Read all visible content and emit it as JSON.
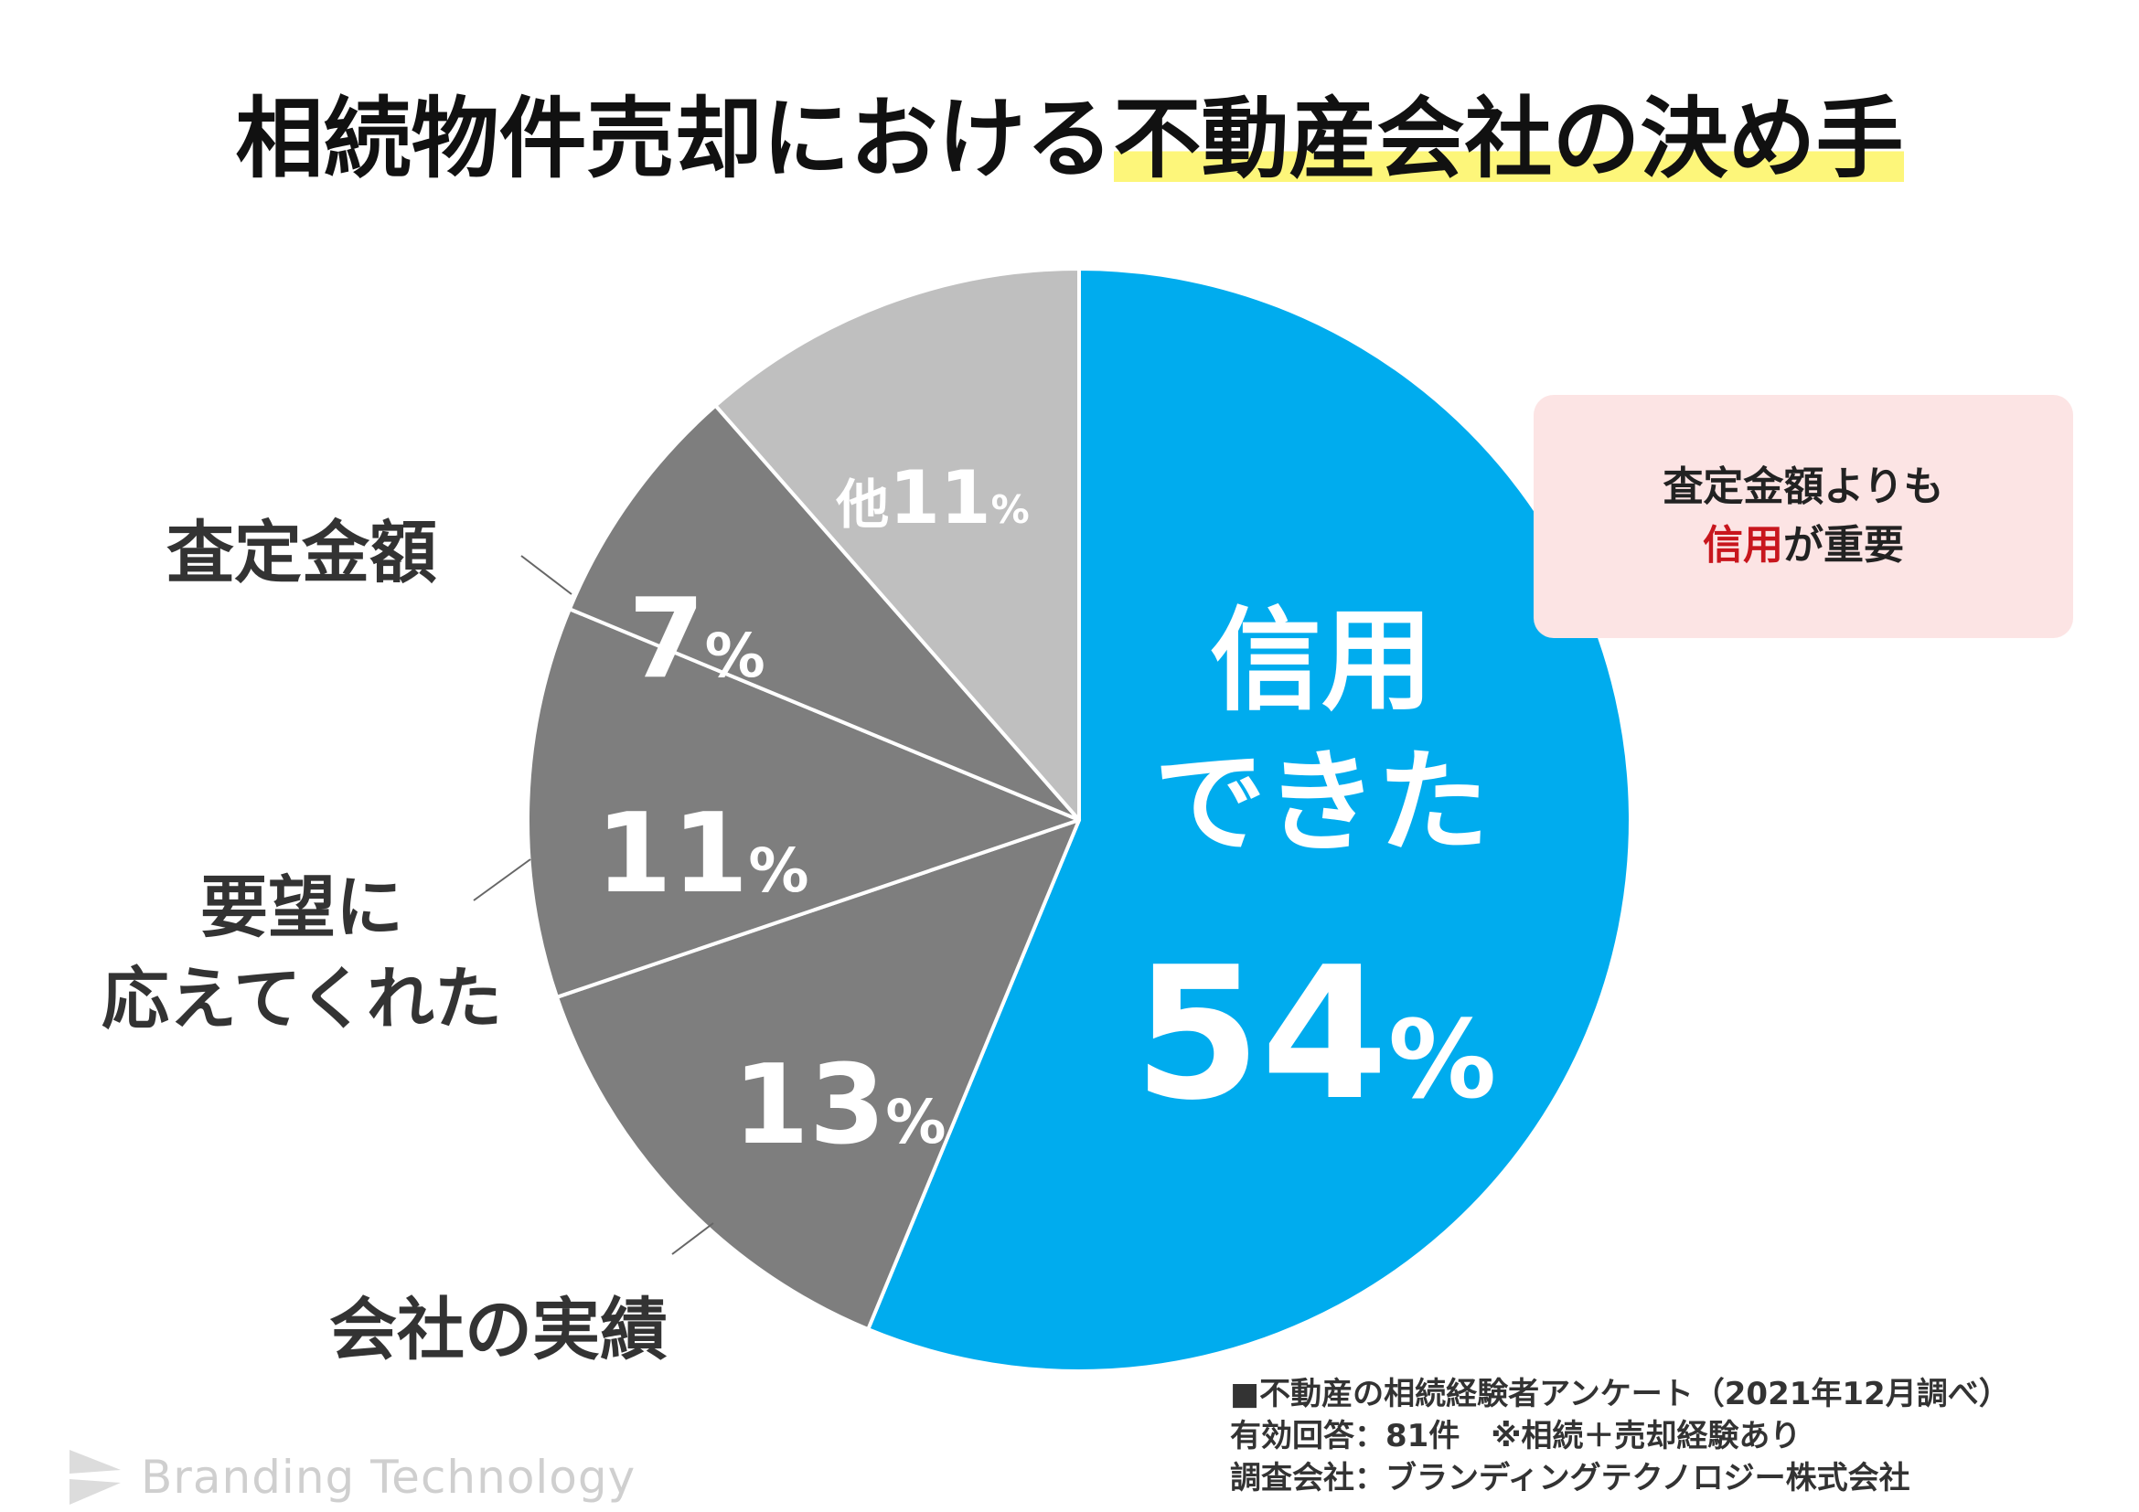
{
  "title": {
    "main": "相続物件売却における",
    "highlight": "不動産会社の決め手"
  },
  "colors": {
    "accent_blue": "#00acee",
    "dark_gray": "#7e7e7e",
    "light_gray": "#bfbfbf",
    "highlight_yellow": "#fdf67a",
    "callout_bg": "#fce4e4",
    "callout_accent": "#c8161d"
  },
  "chart_data": {
    "type": "pie",
    "series": [
      {
        "label": "信用できた",
        "value": 54,
        "value_text": "54",
        "unit": "%",
        "inside_lines": [
          "信用",
          "できた"
        ],
        "color": "#00acee"
      },
      {
        "label": "会社の実績",
        "value": 13,
        "value_text": "13",
        "unit": "%",
        "color": "#7e7e7e"
      },
      {
        "label": "要望に応えてくれた",
        "value": 11,
        "value_text": "11",
        "unit": "%",
        "color": "#7e7e7e"
      },
      {
        "label": "査定金額",
        "value": 7,
        "value_text": "7",
        "unit": "%",
        "color": "#7e7e7e"
      },
      {
        "label": "他",
        "value": 11,
        "value_text": "11",
        "unit": "%",
        "color": "#bfbfbf"
      }
    ],
    "outside_labels": [
      {
        "lines": [
          "査定金額"
        ]
      },
      {
        "lines": [
          "要望に",
          "応えてくれた"
        ]
      },
      {
        "lines": [
          "会社の実績"
        ]
      }
    ]
  },
  "callout": {
    "line1": "査定金額よりも",
    "line2_accent": "信用",
    "line2_rest": "が重要"
  },
  "footer": {
    "line1": "■不動産の相続経験者アンケート（2021年12月調べ）",
    "line2": "有効回答：81件　※相続＋売却経験あり",
    "line3": "調査会社：ブランディングテクノロジー株式会社"
  },
  "brand": {
    "name": "Branding Technology"
  }
}
